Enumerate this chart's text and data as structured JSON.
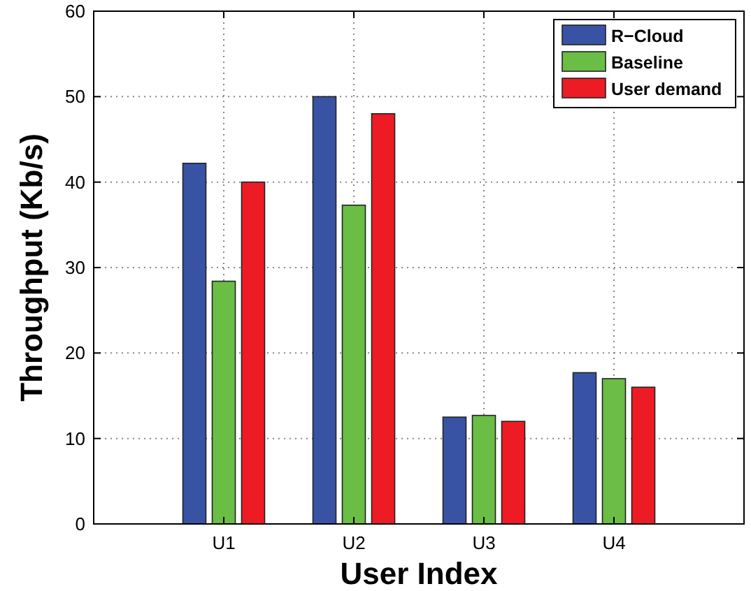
{
  "chart_data": {
    "type": "bar",
    "xlabel": "User Index",
    "ylabel": "Throughput (Kb/s)",
    "categories": [
      "U1",
      "U2",
      "U3",
      "U4"
    ],
    "series": [
      {
        "name": "R−Cloud",
        "color": "#3953a4",
        "values": [
          42.2,
          50,
          12.5,
          17.7
        ]
      },
      {
        "name": "Baseline",
        "color": "#6abd45",
        "values": [
          28.4,
          37.3,
          12.7,
          17
        ]
      },
      {
        "name": "User demand",
        "color": "#ed1c24",
        "values": [
          40,
          48,
          12,
          16
        ]
      }
    ],
    "ylim": [
      0,
      60
    ],
    "yticks": [
      0,
      10,
      20,
      30,
      40,
      50,
      60
    ],
    "grid": true,
    "legend": "top right"
  }
}
